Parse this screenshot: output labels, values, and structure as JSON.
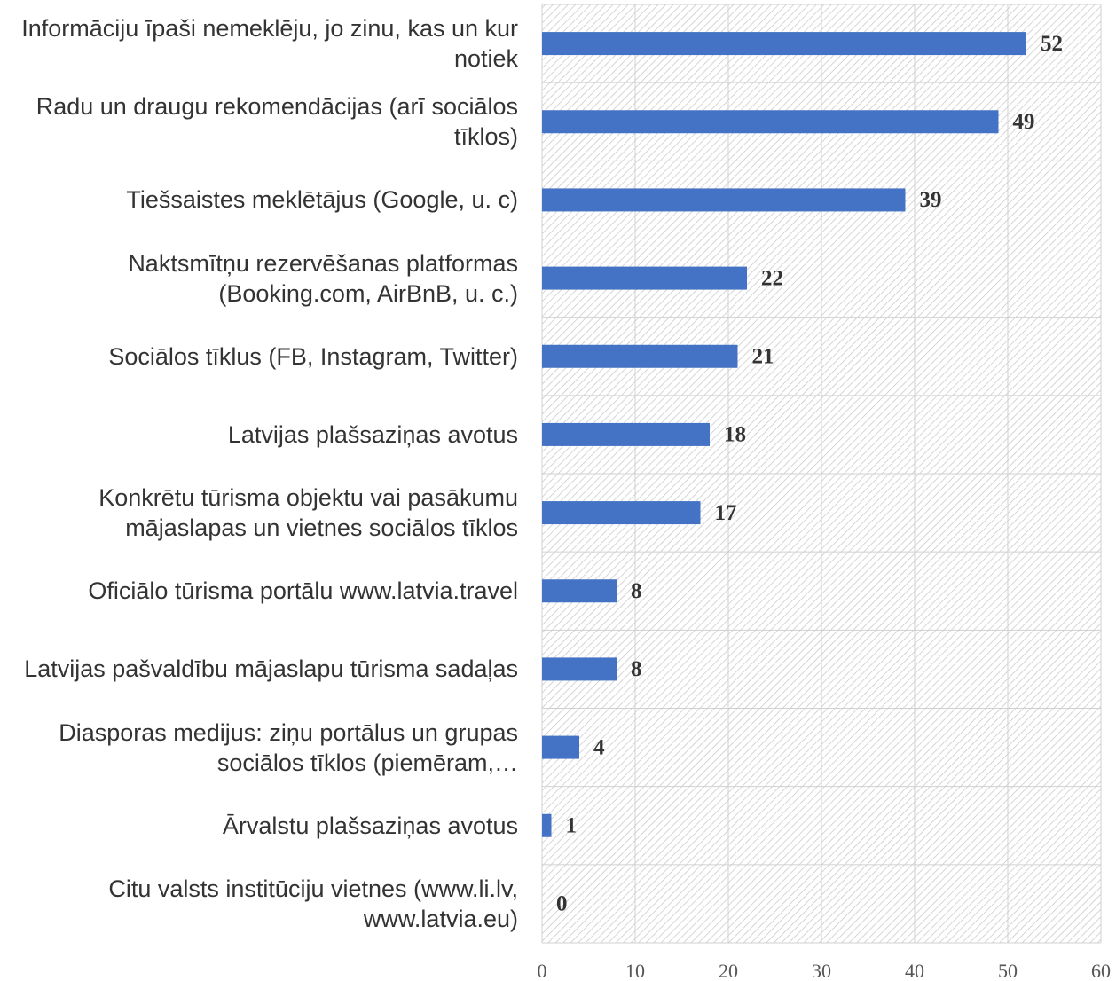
{
  "chart_data": {
    "type": "bar",
    "orientation": "horizontal",
    "categories": [
      "Informāciju īpaši nemeklēju, jo zinu, kas un kur notiek",
      "Radu un draugu rekomendācijas (arī sociālos tīklos)",
      "Tiešsaistes meklētājus (Google, u. c)",
      "Naktsmītņu rezervēšanas platformas (Booking.com, AirBnB, u. c.)",
      "Sociālos tīklus (FB, Instagram, Twitter)",
      "Latvijas plašsaziņas avotus",
      "Konkrētu tūrisma objektu vai pasākumu mājaslapas un vietnes sociālos tīklos",
      "Oficiālo tūrisma portālu www.latvia.travel",
      "Latvijas pašvaldību mājaslapu tūrisma sadaļas",
      "Diasporas medijus: ziņu portālus un grupas sociālos tīklos (piemēram,…",
      "Ārvalstu plašsaziņas avotus",
      "Citu valsts institūciju vietnes (www.li.lv, www.latvia.eu)"
    ],
    "values": [
      52,
      49,
      39,
      22,
      21,
      18,
      17,
      8,
      8,
      4,
      1,
      0
    ],
    "color": "#4472c4",
    "xlim": [
      0,
      60
    ],
    "xticks": [
      0,
      10,
      20,
      30,
      40,
      50,
      60
    ],
    "grid": true
  }
}
